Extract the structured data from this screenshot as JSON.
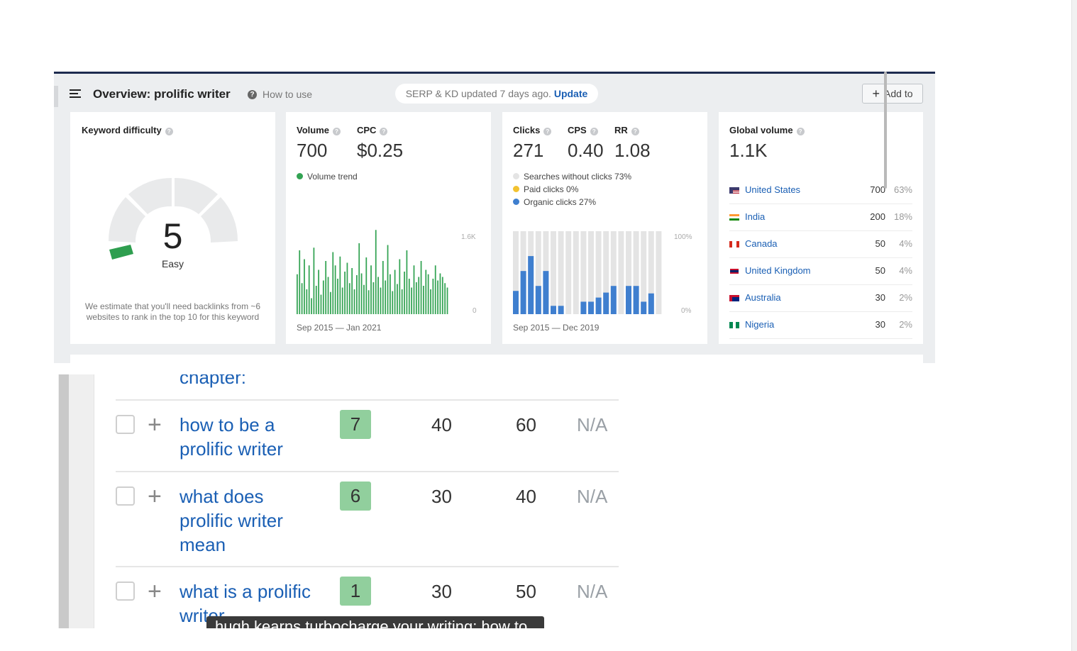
{
  "overview": {
    "title": "Overview: prolific writer",
    "how_to_use": "How to use",
    "serp_text": "SERP & KD updated 7 days ago.",
    "serp_action": "Update",
    "add_to": "Add to"
  },
  "kd": {
    "label": "Keyword difficulty",
    "value": "5",
    "word": "Easy",
    "note": "We estimate that you'll need backlinks from ~6 websites to rank in the top 10 for this keyword",
    "accent": "#2e9e4f"
  },
  "volume": {
    "label": "Volume",
    "value": "700",
    "cpc_label": "CPC",
    "cpc_value": "$0.25",
    "trend_label": "Volume trend",
    "axis_top": "1.6K",
    "axis_bottom": "0",
    "range": "Sep 2015 — Jan 2021",
    "color": "#33a353"
  },
  "clicks": {
    "label": "Clicks",
    "value": "271",
    "cps_label": "CPS",
    "cps_value": "0.40",
    "rr_label": "RR",
    "rr_value": "1.08",
    "legend": [
      {
        "text": "Searches without clicks 73%",
        "color": "#e4e4e4"
      },
      {
        "text": "Paid clicks 0%",
        "color": "#f2c230"
      },
      {
        "text": "Organic clicks 27%",
        "color": "#3f7fcf"
      }
    ],
    "axis_top": "100%",
    "axis_bottom": "0%",
    "range": "Sep 2015 — Dec 2019"
  },
  "global": {
    "label": "Global volume",
    "value": "1.1K",
    "countries": [
      {
        "name": "United States",
        "volume": "700",
        "pct": "63%",
        "flag": "us"
      },
      {
        "name": "India",
        "volume": "200",
        "pct": "18%",
        "flag": "in"
      },
      {
        "name": "Canada",
        "volume": "50",
        "pct": "4%",
        "flag": "ca"
      },
      {
        "name": "United Kingdom",
        "volume": "50",
        "pct": "4%",
        "flag": "uk"
      },
      {
        "name": "Australia",
        "volume": "30",
        "pct": "2%",
        "flag": "au"
      },
      {
        "name": "Nigeria",
        "volume": "30",
        "pct": "2%",
        "flag": "ng"
      }
    ]
  },
  "keywords": {
    "partial_top": "chapter:",
    "rows": [
      {
        "lines": [
          "how to be a",
          "prolific writer"
        ],
        "kd": "7",
        "volume": "40",
        "traffic": "60",
        "cpc": "N/A"
      },
      {
        "lines": [
          "what does",
          "prolific writer",
          "mean"
        ],
        "kd": "6",
        "volume": "30",
        "traffic": "40",
        "cpc": "N/A"
      },
      {
        "lines": [
          "what is a prolific",
          "writer"
        ],
        "kd": "1",
        "volume": "30",
        "traffic": "50",
        "cpc": "N/A"
      }
    ],
    "tooltip": "hugh kearns turbocharge your writing: how to"
  }
}
